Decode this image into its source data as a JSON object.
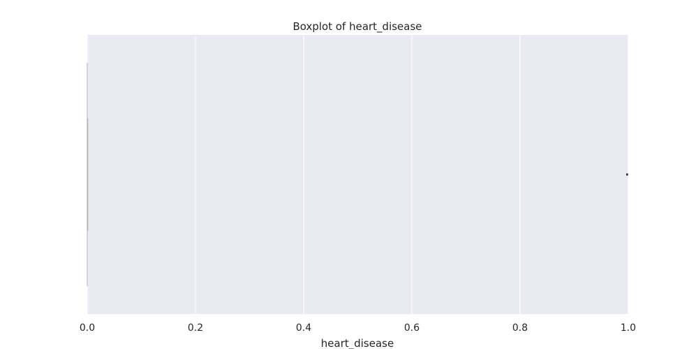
{
  "chart_data": {
    "type": "boxplot",
    "orientation": "horizontal",
    "title": "Boxplot of heart_disease",
    "xlabel": "heart_disease",
    "ylabel": "",
    "xlim": [
      0.0,
      1.0
    ],
    "xticks": [
      0.0,
      0.2,
      0.4,
      0.6,
      0.8,
      1.0
    ],
    "xtick_labels": [
      "0.0",
      "0.2",
      "0.4",
      "0.6",
      "0.8",
      "1.0"
    ],
    "grid": true,
    "box": {
      "whisker_low": 0.0,
      "q1": 0.0,
      "median": 0.0,
      "q3": 0.0,
      "whisker_high": 0.0,
      "outliers": [
        1.0
      ]
    },
    "colors": {
      "plot_background": "#eaeaf2",
      "grid": "#ffffff",
      "box_line": "#b3b3b3",
      "outlier": "#3f3f4f",
      "text": "#262626"
    }
  }
}
